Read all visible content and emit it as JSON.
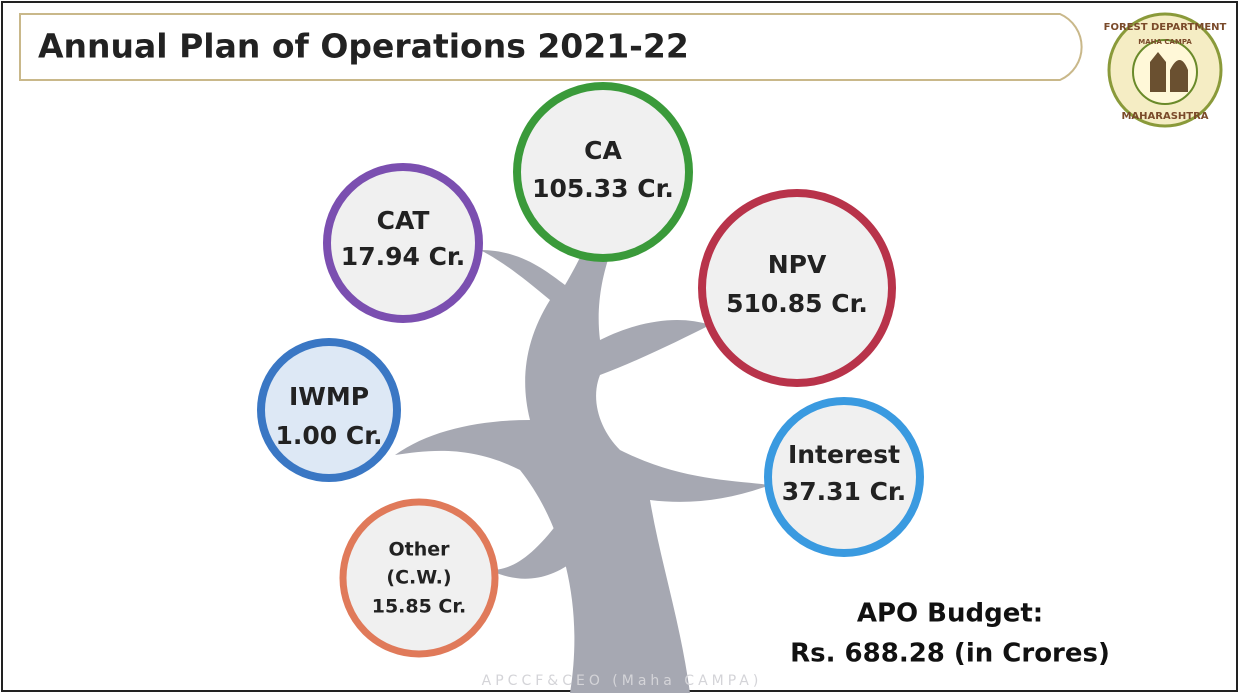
{
  "header": {
    "title": "Annual  Plan of Operations 2021-22"
  },
  "logo": {
    "top": "FOREST DEPARTMENT",
    "middle": "MAHA CAMPA",
    "bottom": "MAHARASHTRA"
  },
  "nodes": [
    {
      "lines": [
        "CA",
        "105.33 Cr."
      ]
    },
    {
      "lines": [
        "CAT",
        "17.94 Cr."
      ]
    },
    {
      "lines": [
        "NPV",
        "510.85 Cr."
      ]
    },
    {
      "lines": [
        "IWMP",
        "1.00 Cr."
      ]
    },
    {
      "lines": [
        "Interest",
        "37.31 Cr."
      ]
    },
    {
      "lines": [
        "Other",
        "(C.W.)",
        "15.85 Cr."
      ]
    }
  ],
  "budget": {
    "label": "APO Budget:",
    "amount": "Rs. 688.28 (in Crores)"
  },
  "footer": "APCCF&CEO (Maha CAMPA)"
}
